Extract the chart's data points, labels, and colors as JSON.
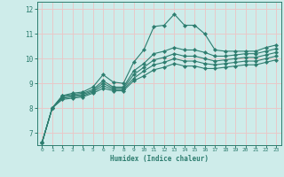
{
  "xlabel": "Humidex (Indice chaleur)",
  "xlim": [
    -0.5,
    23.5
  ],
  "ylim": [
    6.5,
    12.3
  ],
  "xticks": [
    0,
    1,
    2,
    3,
    4,
    5,
    6,
    7,
    8,
    9,
    10,
    11,
    12,
    13,
    14,
    15,
    16,
    17,
    18,
    19,
    20,
    21,
    22,
    23
  ],
  "yticks": [
    7,
    8,
    9,
    10,
    11,
    12
  ],
  "bg_color": "#ceecea",
  "grid_color": "#e8c8c8",
  "line_color": "#2d7d6f",
  "series": [
    [
      6.6,
      8.0,
      8.5,
      8.6,
      8.65,
      8.85,
      9.35,
      9.05,
      9.0,
      9.85,
      10.35,
      11.3,
      11.35,
      11.8,
      11.35,
      11.35,
      11.0,
      10.35,
      10.3,
      10.3,
      10.3,
      10.3,
      10.45,
      10.55
    ],
    [
      6.6,
      8.0,
      8.5,
      8.55,
      8.6,
      8.75,
      9.1,
      8.85,
      8.85,
      9.5,
      9.8,
      10.2,
      10.3,
      10.45,
      10.35,
      10.35,
      10.25,
      10.1,
      10.1,
      10.15,
      10.2,
      10.2,
      10.3,
      10.4
    ],
    [
      6.6,
      8.0,
      8.45,
      8.5,
      8.55,
      8.7,
      9.0,
      8.8,
      8.8,
      9.35,
      9.65,
      9.95,
      10.05,
      10.2,
      10.1,
      10.1,
      10.0,
      9.9,
      9.95,
      10.0,
      10.05,
      10.05,
      10.15,
      10.25
    ],
    [
      6.6,
      8.0,
      8.4,
      8.45,
      8.5,
      8.65,
      8.9,
      8.75,
      8.75,
      9.2,
      9.5,
      9.75,
      9.85,
      10.0,
      9.9,
      9.9,
      9.8,
      9.75,
      9.8,
      9.85,
      9.9,
      9.9,
      10.0,
      10.1
    ],
    [
      6.6,
      8.0,
      8.35,
      8.4,
      8.45,
      8.6,
      8.8,
      8.7,
      8.7,
      9.1,
      9.3,
      9.55,
      9.65,
      9.8,
      9.7,
      9.7,
      9.6,
      9.6,
      9.65,
      9.7,
      9.75,
      9.75,
      9.85,
      9.95
    ]
  ]
}
